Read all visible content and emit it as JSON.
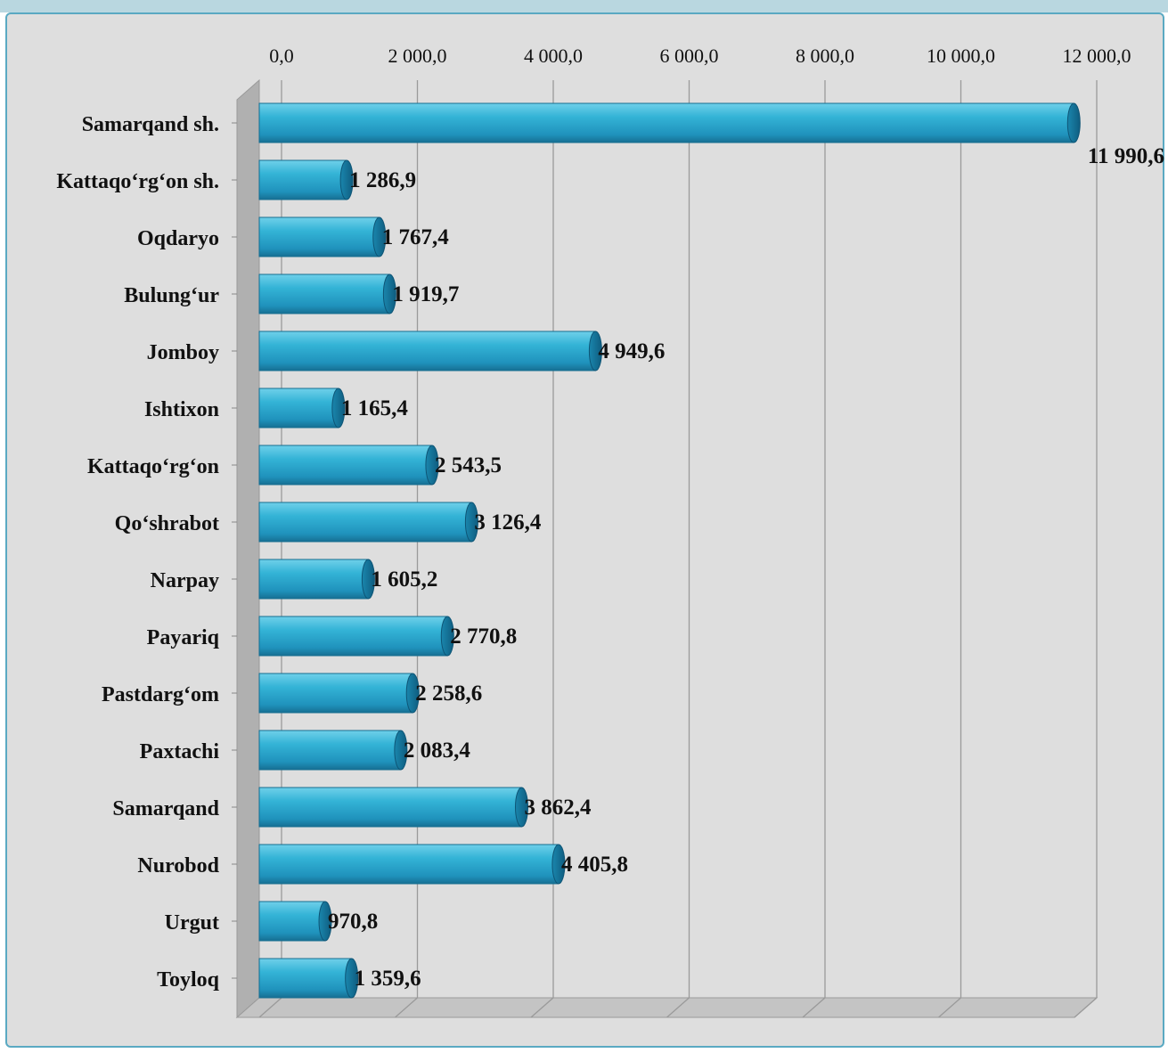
{
  "chart_data": {
    "type": "bar",
    "orientation": "horizontal",
    "xlim": [
      0,
      12000
    ],
    "x_ticks": [
      "0,0",
      "2 000,0",
      "4 000,0",
      "6 000,0",
      "8 000,0",
      "10 000,0",
      "12 000,0"
    ],
    "x_tick_values": [
      0,
      2000,
      4000,
      6000,
      8000,
      10000,
      12000
    ],
    "x_axis_position": "top",
    "grid": true,
    "legend": false,
    "colors": {
      "bar": "#2fa9cc",
      "bar_dark": "#1678a0",
      "background": "#dedede",
      "frame": "#5aa9c2"
    },
    "categories": [
      "Samarqand sh.",
      "Kattaqo‘rg‘on sh.",
      "Oqdaryo",
      "Bulung‘ur",
      "Jomboy",
      "Ishtixon",
      "Kattaqo‘rg‘on",
      "Qo‘shrabot",
      "Narpay",
      "Payariq",
      "Pastdarg‘om",
      "Paxtachi",
      "Samarqand",
      "Nurobod",
      "Urgut",
      "Toyloq"
    ],
    "values": [
      11990.6,
      1286.9,
      1767.4,
      1919.7,
      4949.6,
      1165.4,
      2543.5,
      3126.4,
      1605.2,
      2770.8,
      2258.6,
      2083.4,
      3862.4,
      4405.8,
      970.8,
      1359.6
    ],
    "value_labels": [
      "11 990,6",
      "1 286,9",
      "1 767,4",
      "1 919,7",
      "4 949,6",
      "1 165,4",
      "2 543,5",
      "3 126,4",
      "1 605,2",
      "2 770,8",
      "2 258,6",
      "2 083,4",
      "3 862,4",
      "4 405,8",
      "970,8",
      "1 359,6"
    ]
  }
}
